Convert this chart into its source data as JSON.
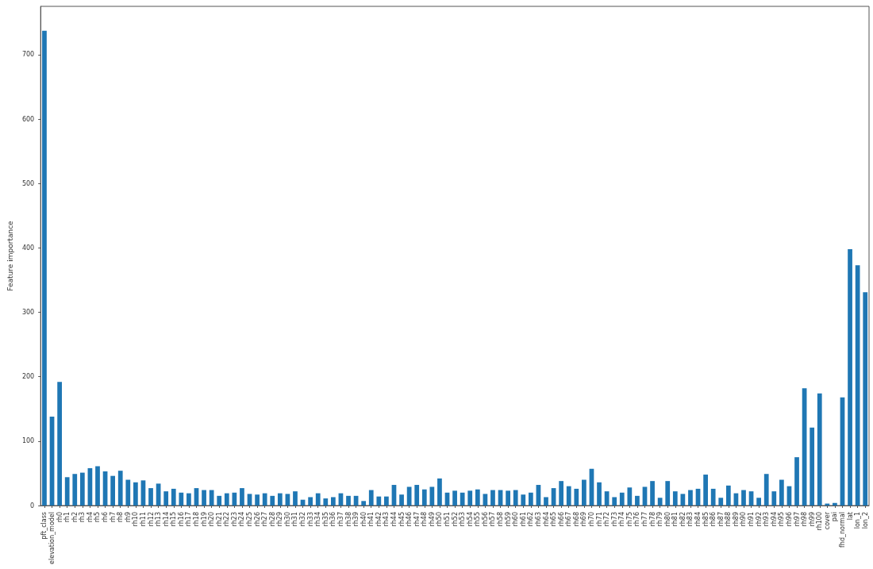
{
  "chart_data": {
    "type": "bar",
    "ylabel": "Feature importance",
    "color": "#1f77b4",
    "categories": [
      "pft_class",
      "elevation_model",
      "rh0",
      "rh1",
      "rh2",
      "rh3",
      "rh4",
      "rh5",
      "rh6",
      "rh7",
      "rh8",
      "rh9",
      "rh10",
      "rh11",
      "rh12",
      "rh13",
      "rh14",
      "rh15",
      "rh16",
      "rh17",
      "rh18",
      "rh19",
      "rh20",
      "rh21",
      "rh22",
      "rh23",
      "rh24",
      "rh25",
      "rh26",
      "rh27",
      "rh28",
      "rh29",
      "rh30",
      "rh31",
      "rh32",
      "rh33",
      "rh34",
      "rh35",
      "rh36",
      "rh37",
      "rh38",
      "rh39",
      "rh40",
      "rh41",
      "rh42",
      "rh43",
      "rh44",
      "rh45",
      "rh46",
      "rh47",
      "rh48",
      "rh49",
      "rh50",
      "rh51",
      "rh52",
      "rh53",
      "rh54",
      "rh55",
      "rh56",
      "rh57",
      "rh58",
      "rh59",
      "rh60",
      "rh61",
      "rh62",
      "rh63",
      "rh64",
      "rh65",
      "rh66",
      "rh67",
      "rh68",
      "rh69",
      "rh70",
      "rh71",
      "rh72",
      "rh73",
      "rh74",
      "rh75",
      "rh76",
      "rh77",
      "rh78",
      "rh79",
      "rh80",
      "rh81",
      "rh82",
      "rh83",
      "rh84",
      "rh85",
      "rh86",
      "rh87",
      "rh88",
      "rh89",
      "rh90",
      "rh91",
      "rh92",
      "rh93",
      "rh94",
      "rh95",
      "rh96",
      "rh97",
      "rh98",
      "rh99",
      "rh100",
      "cover",
      "pai",
      "fhd_normal",
      "lat",
      "lon_1",
      "lon_2"
    ],
    "values": [
      737,
      138,
      192,
      44,
      49,
      51,
      58,
      61,
      53,
      46,
      54,
      40,
      36,
      39,
      27,
      34,
      22,
      26,
      20,
      19,
      27,
      24,
      24,
      15,
      19,
      20,
      27,
      18,
      17,
      19,
      15,
      19,
      18,
      22,
      9,
      13,
      19,
      11,
      13,
      19,
      15,
      15,
      7,
      24,
      14,
      14,
      32,
      17,
      29,
      32,
      25,
      29,
      42,
      20,
      23,
      20,
      23,
      25,
      18,
      24,
      24,
      23,
      24,
      17,
      20,
      32,
      13,
      27,
      38,
      30,
      26,
      40,
      57,
      36,
      22,
      13,
      20,
      28,
      15,
      29,
      38,
      12,
      38,
      22,
      18,
      24,
      26,
      48,
      26,
      12,
      31,
      19,
      24,
      22,
      12,
      49,
      22,
      40,
      30,
      75,
      182,
      121,
      174,
      3,
      4,
      168,
      398,
      373,
      331
    ],
    "ylim": [
      0,
      775
    ],
    "yticks": [
      0,
      100,
      200,
      300,
      400,
      500,
      600,
      700
    ],
    "grid": false
  }
}
